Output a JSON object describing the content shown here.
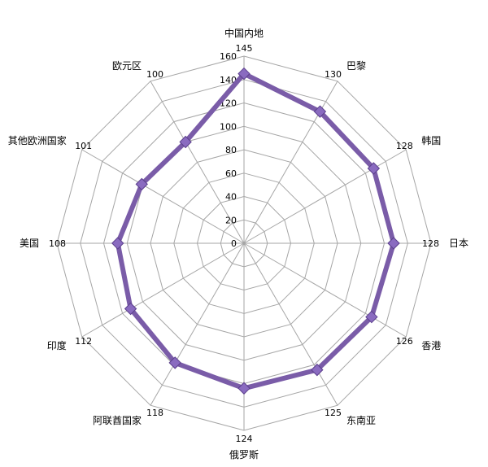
{
  "chart_data": {
    "type": "radar",
    "categories": [
      "中国内地",
      "巴黎",
      "韩国",
      "日本",
      "香港",
      "东南亚",
      "俄罗斯",
      "阿联酋国家",
      "印度",
      "美国",
      "其他欧洲国家",
      "欧元区"
    ],
    "series": [
      {
        "values": [
          145,
          130,
          128,
          128,
          126,
          125,
          124,
          118,
          112,
          108,
          101,
          100
        ]
      }
    ],
    "ylim": [
      0,
      160
    ],
    "r_ticks": [
      0,
      20,
      40,
      60,
      80,
      100,
      120,
      140,
      160
    ],
    "r_tick_labels": [
      "0",
      "20",
      "40",
      "60",
      "80",
      "100",
      "120",
      "140",
      "160"
    ],
    "data_labels": [
      "145",
      "130",
      "128",
      "128",
      "126",
      "125",
      "124",
      "118",
      "112",
      "108",
      "101",
      "100"
    ],
    "grid": true,
    "legend": "none",
    "series_color": "#7a5ca8",
    "grid_color": "#a6a6a6"
  }
}
